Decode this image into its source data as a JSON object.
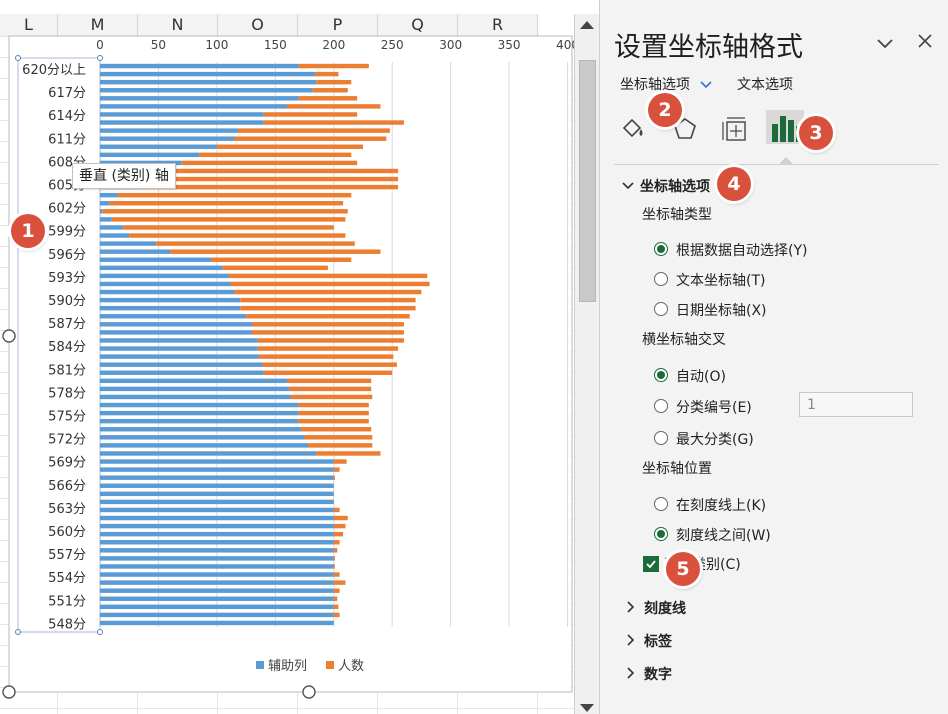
{
  "sheet": {
    "columns": [
      "L",
      "M",
      "N",
      "O",
      "P",
      "Q",
      "R"
    ]
  },
  "chart_data": {
    "type": "bar",
    "orientation": "horizontal",
    "stacked": true,
    "x_ticks": [
      "0",
      "50",
      "100",
      "150",
      "200",
      "250",
      "300",
      "350",
      "400",
      "4"
    ],
    "xlim": [
      0,
      400
    ],
    "categories_labeled": [
      "620分以上",
      "617分",
      "614分",
      "611分",
      "608分",
      "605分",
      "602分",
      "599分",
      "596分",
      "593分",
      "590分",
      "587分",
      "584分",
      "581分",
      "578分",
      "575分",
      "572分",
      "569分",
      "566分",
      "563分",
      "560分",
      "557分",
      "554分",
      "551分",
      "548分"
    ],
    "series": [
      {
        "name": "辅助列",
        "color": "#5b9bd5",
        "values": [
          170,
          184,
          185,
          182,
          170,
          160,
          140,
          140,
          118,
          115,
          100,
          85,
          70,
          65,
          35,
          30,
          15,
          8,
          2,
          10,
          20,
          25,
          48,
          60,
          95,
          105,
          110,
          112,
          115,
          120,
          120,
          125,
          130,
          130,
          135,
          135,
          136,
          139,
          140,
          160,
          162,
          163,
          170,
          170,
          170,
          172,
          175,
          178,
          185,
          200,
          200,
          200,
          200,
          200,
          200,
          200,
          200,
          200,
          200,
          200,
          200,
          200,
          200,
          200,
          200,
          200,
          200,
          200,
          200,
          200
        ]
      },
      {
        "name": "人数",
        "color": "#ed7d31",
        "values": [
          60,
          20,
          30,
          30,
          50,
          80,
          80,
          120,
          130,
          130,
          125,
          130,
          150,
          190,
          220,
          225,
          200,
          200,
          210,
          200,
          180,
          185,
          170,
          180,
          120,
          90,
          170,
          170,
          160,
          150,
          150,
          140,
          130,
          130,
          125,
          120,
          115,
          115,
          110,
          72,
          70,
          70,
          60,
          60,
          60,
          60,
          58,
          55,
          55,
          11,
          5,
          1,
          0,
          0,
          0,
          5,
          12,
          10,
          8,
          5,
          3,
          1,
          1,
          5,
          10,
          5,
          3,
          4,
          5,
          0
        ]
      }
    ],
    "legend": [
      "辅助列",
      "人数"
    ],
    "legend_position": "bottom",
    "grid": true
  },
  "tooltip": "垂直 (类别) 轴",
  "pane": {
    "title": "设置坐标轴格式",
    "tab_axis_options": "坐标轴选项",
    "tab_text_options": "文本选项",
    "section_axis_options": "坐标轴选项",
    "axis_type_label": "坐标轴类型",
    "axis_type_options": [
      {
        "text": "根据数据自动选择(Y)",
        "selected": true
      },
      {
        "text": "文本坐标轴(T)",
        "selected": false
      },
      {
        "text": "日期坐标轴(X)",
        "selected": false
      }
    ],
    "cross_label": "横坐标轴交叉",
    "cross_options": [
      {
        "text": "自动(O)",
        "selected": true
      },
      {
        "text": "分类编号(E)",
        "selected": false
      },
      {
        "text": "最大分类(G)",
        "selected": false
      }
    ],
    "cross_value": "1",
    "position_label": "坐标轴位置",
    "position_options": [
      {
        "text": "在刻度线上(K)",
        "selected": false
      },
      {
        "text": "刻度线之间(W)",
        "selected": true
      }
    ],
    "reverse_label": "逆序类别(C)",
    "reverse_label_visible": "类别(C)",
    "reverse_checked": true,
    "collapsed_sections": [
      "刻度线",
      "标签",
      "数字"
    ]
  },
  "badges": [
    "1",
    "2",
    "3",
    "4",
    "5"
  ]
}
